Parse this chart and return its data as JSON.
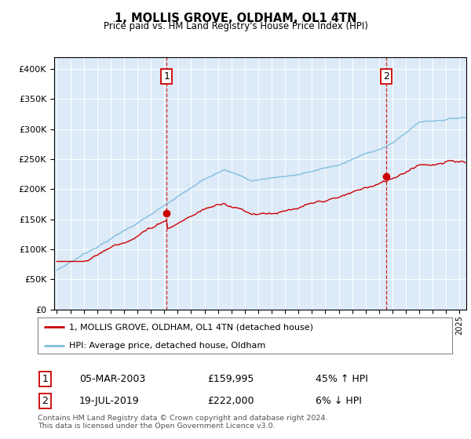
{
  "title": "1, MOLLIS GROVE, OLDHAM, OL1 4TN",
  "subtitle": "Price paid vs. HM Land Registry's House Price Index (HPI)",
  "legend_line1": "1, MOLLIS GROVE, OLDHAM, OL1 4TN (detached house)",
  "legend_line2": "HPI: Average price, detached house, Oldham",
  "footnote": "Contains HM Land Registry data © Crown copyright and database right 2024.\nThis data is licensed under the Open Government Licence v3.0.",
  "sale1_date": "05-MAR-2003",
  "sale1_price": "£159,995",
  "sale1_hpi": "45% ↑ HPI",
  "sale2_date": "19-JUL-2019",
  "sale2_price": "£222,000",
  "sale2_hpi": "6% ↓ HPI",
  "hpi_color": "#7fbfdf",
  "price_color": "#cc0000",
  "bg_color": "#ddeaf7",
  "vline_color": "#cc0000",
  "ylim": [
    0,
    420000
  ],
  "yticks": [
    0,
    50000,
    100000,
    150000,
    200000,
    250000,
    300000,
    350000,
    400000
  ],
  "sale1_x": 2003.17,
  "sale1_y": 159995,
  "sale2_x": 2019.54,
  "sale2_y": 222000,
  "xmin": 1994.8,
  "xmax": 2025.5
}
